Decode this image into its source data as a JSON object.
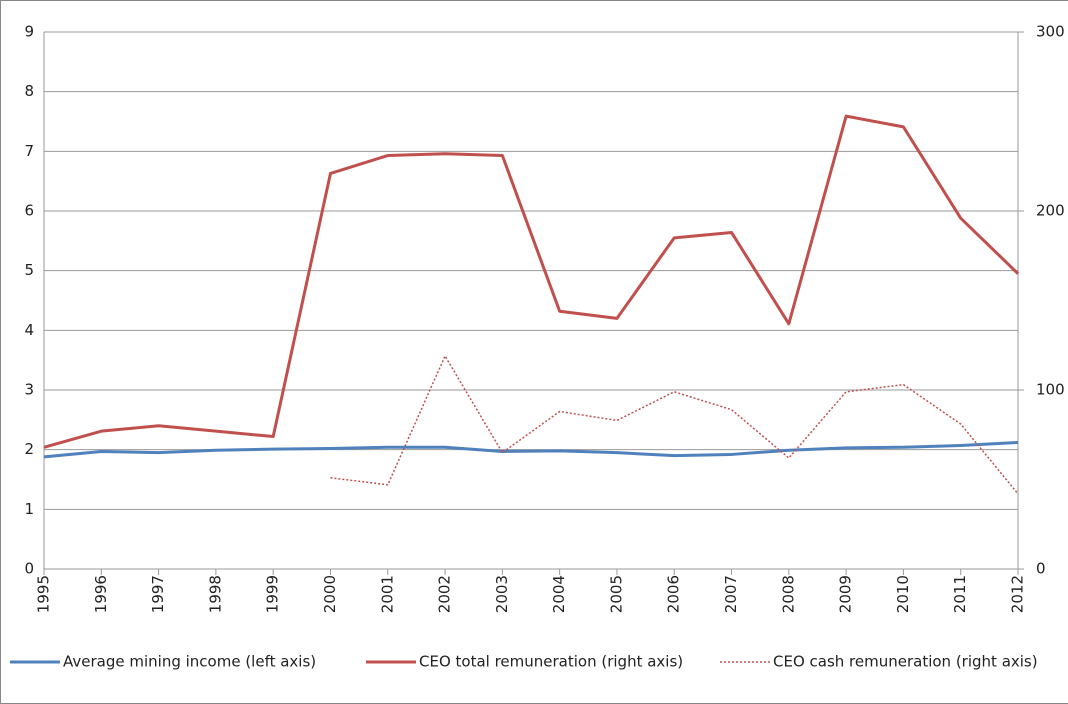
{
  "chart_data": {
    "type": "line",
    "categories": [
      "1995",
      "1996",
      "1997",
      "1998",
      "1999",
      "2000",
      "2001",
      "2002",
      "2003",
      "2004",
      "2005",
      "2006",
      "2007",
      "2008",
      "2009",
      "2010",
      "2011",
      "2012"
    ],
    "series": [
      {
        "name": "Average mining income (left axis)",
        "color": "#4f81bd",
        "style": "solid",
        "axis": "y",
        "values": [
          1.88,
          1.97,
          1.95,
          1.99,
          2.01,
          2.02,
          2.04,
          2.04,
          1.97,
          1.98,
          1.95,
          1.9,
          1.92,
          1.99,
          2.03,
          2.04,
          2.07,
          2.12
        ]
      },
      {
        "name": "CEO total remuneration (right axis)",
        "color": "#c0504d",
        "style": "solid",
        "axis": "y2",
        "values": [
          68,
          77,
          80,
          77,
          74,
          221,
          231,
          232,
          231,
          144,
          140,
          185,
          188,
          137,
          253,
          247,
          196,
          165
        ]
      },
      {
        "name": "CEO cash remuneration (right axis)",
        "color": "#c0504d",
        "style": "dotted",
        "axis": "y2",
        "values": [
          null,
          null,
          null,
          null,
          null,
          51,
          47,
          119,
          65,
          88,
          83,
          99,
          89,
          62,
          99,
          103,
          81,
          42
        ]
      }
    ],
    "ylim": [
      0,
      9
    ],
    "yticks": [
      0,
      1,
      2,
      3,
      4,
      5,
      6,
      7,
      8,
      9
    ],
    "y2lim": [
      0,
      300
    ],
    "y2ticks": [
      0,
      100,
      200,
      300
    ],
    "grid": true,
    "legend": "bottom"
  }
}
